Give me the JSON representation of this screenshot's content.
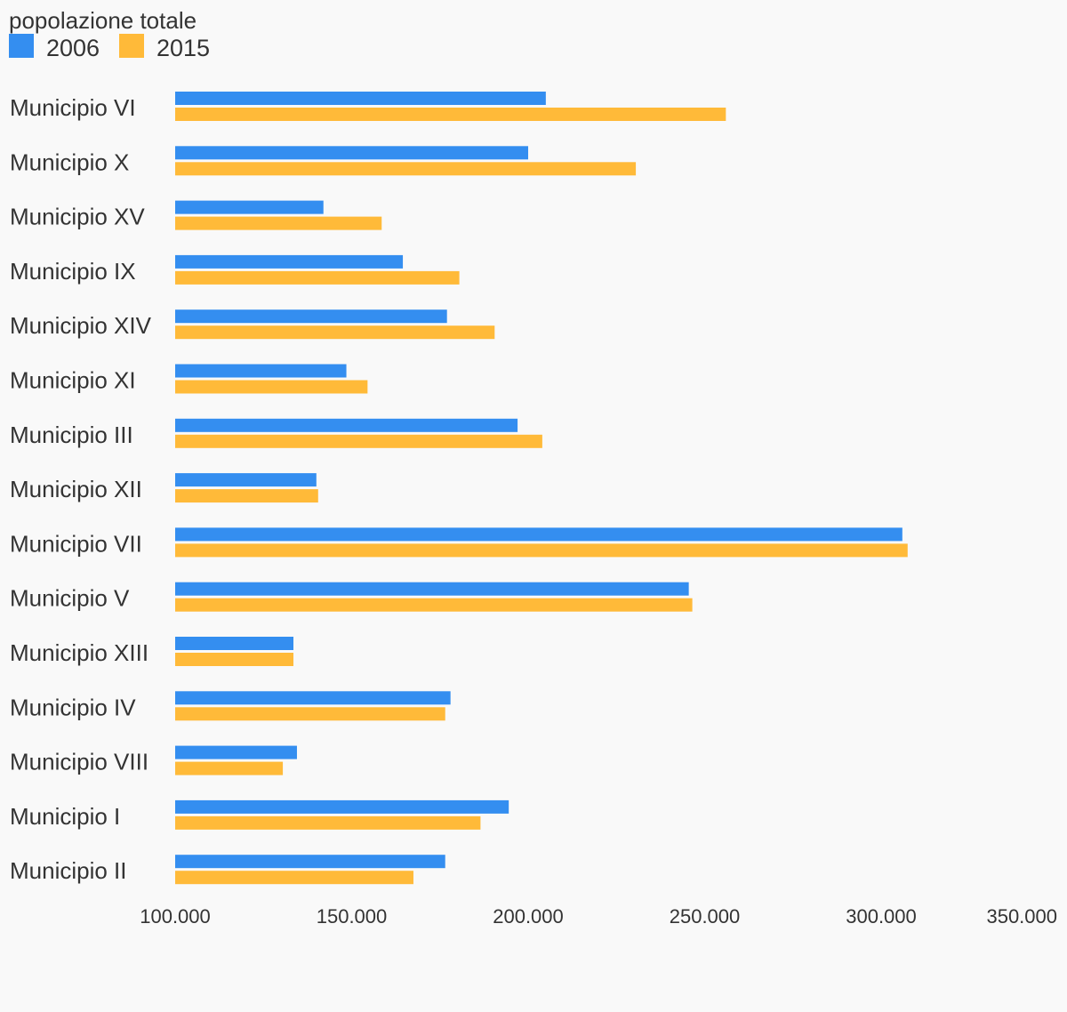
{
  "chart_data": {
    "type": "bar",
    "orientation": "horizontal",
    "title": "popolazione totale",
    "categories": [
      "Municipio VI",
      "Municipio X",
      "Municipio XV",
      "Municipio IX",
      "Municipio XIV",
      "Municipio XI",
      "Municipio III",
      "Municipio XII",
      "Municipio VII",
      "Municipio V",
      "Municipio XIII",
      "Municipio IV",
      "Municipio VIII",
      "Municipio I",
      "Municipio II"
    ],
    "series": [
      {
        "name": "2006",
        "color": "#348ef0",
        "values": [
          205000,
          200000,
          142000,
          164500,
          177000,
          148500,
          197000,
          140000,
          306000,
          245500,
          133500,
          178000,
          134500,
          194500,
          176500
        ]
      },
      {
        "name": "2015",
        "color": "#ffba39",
        "values": [
          256000,
          230500,
          158500,
          180500,
          190500,
          154500,
          204000,
          140500,
          307500,
          246500,
          133500,
          176500,
          130500,
          186500,
          167500
        ]
      }
    ],
    "xlim": [
      100000,
      350000
    ],
    "x_ticks": [
      100000,
      150000,
      200000,
      250000,
      300000,
      350000
    ],
    "x_tick_labels": [
      "100.000",
      "150.000",
      "200.000",
      "250.000",
      "300.000",
      "350.000"
    ],
    "legend_position": "top-left",
    "grid": false
  }
}
